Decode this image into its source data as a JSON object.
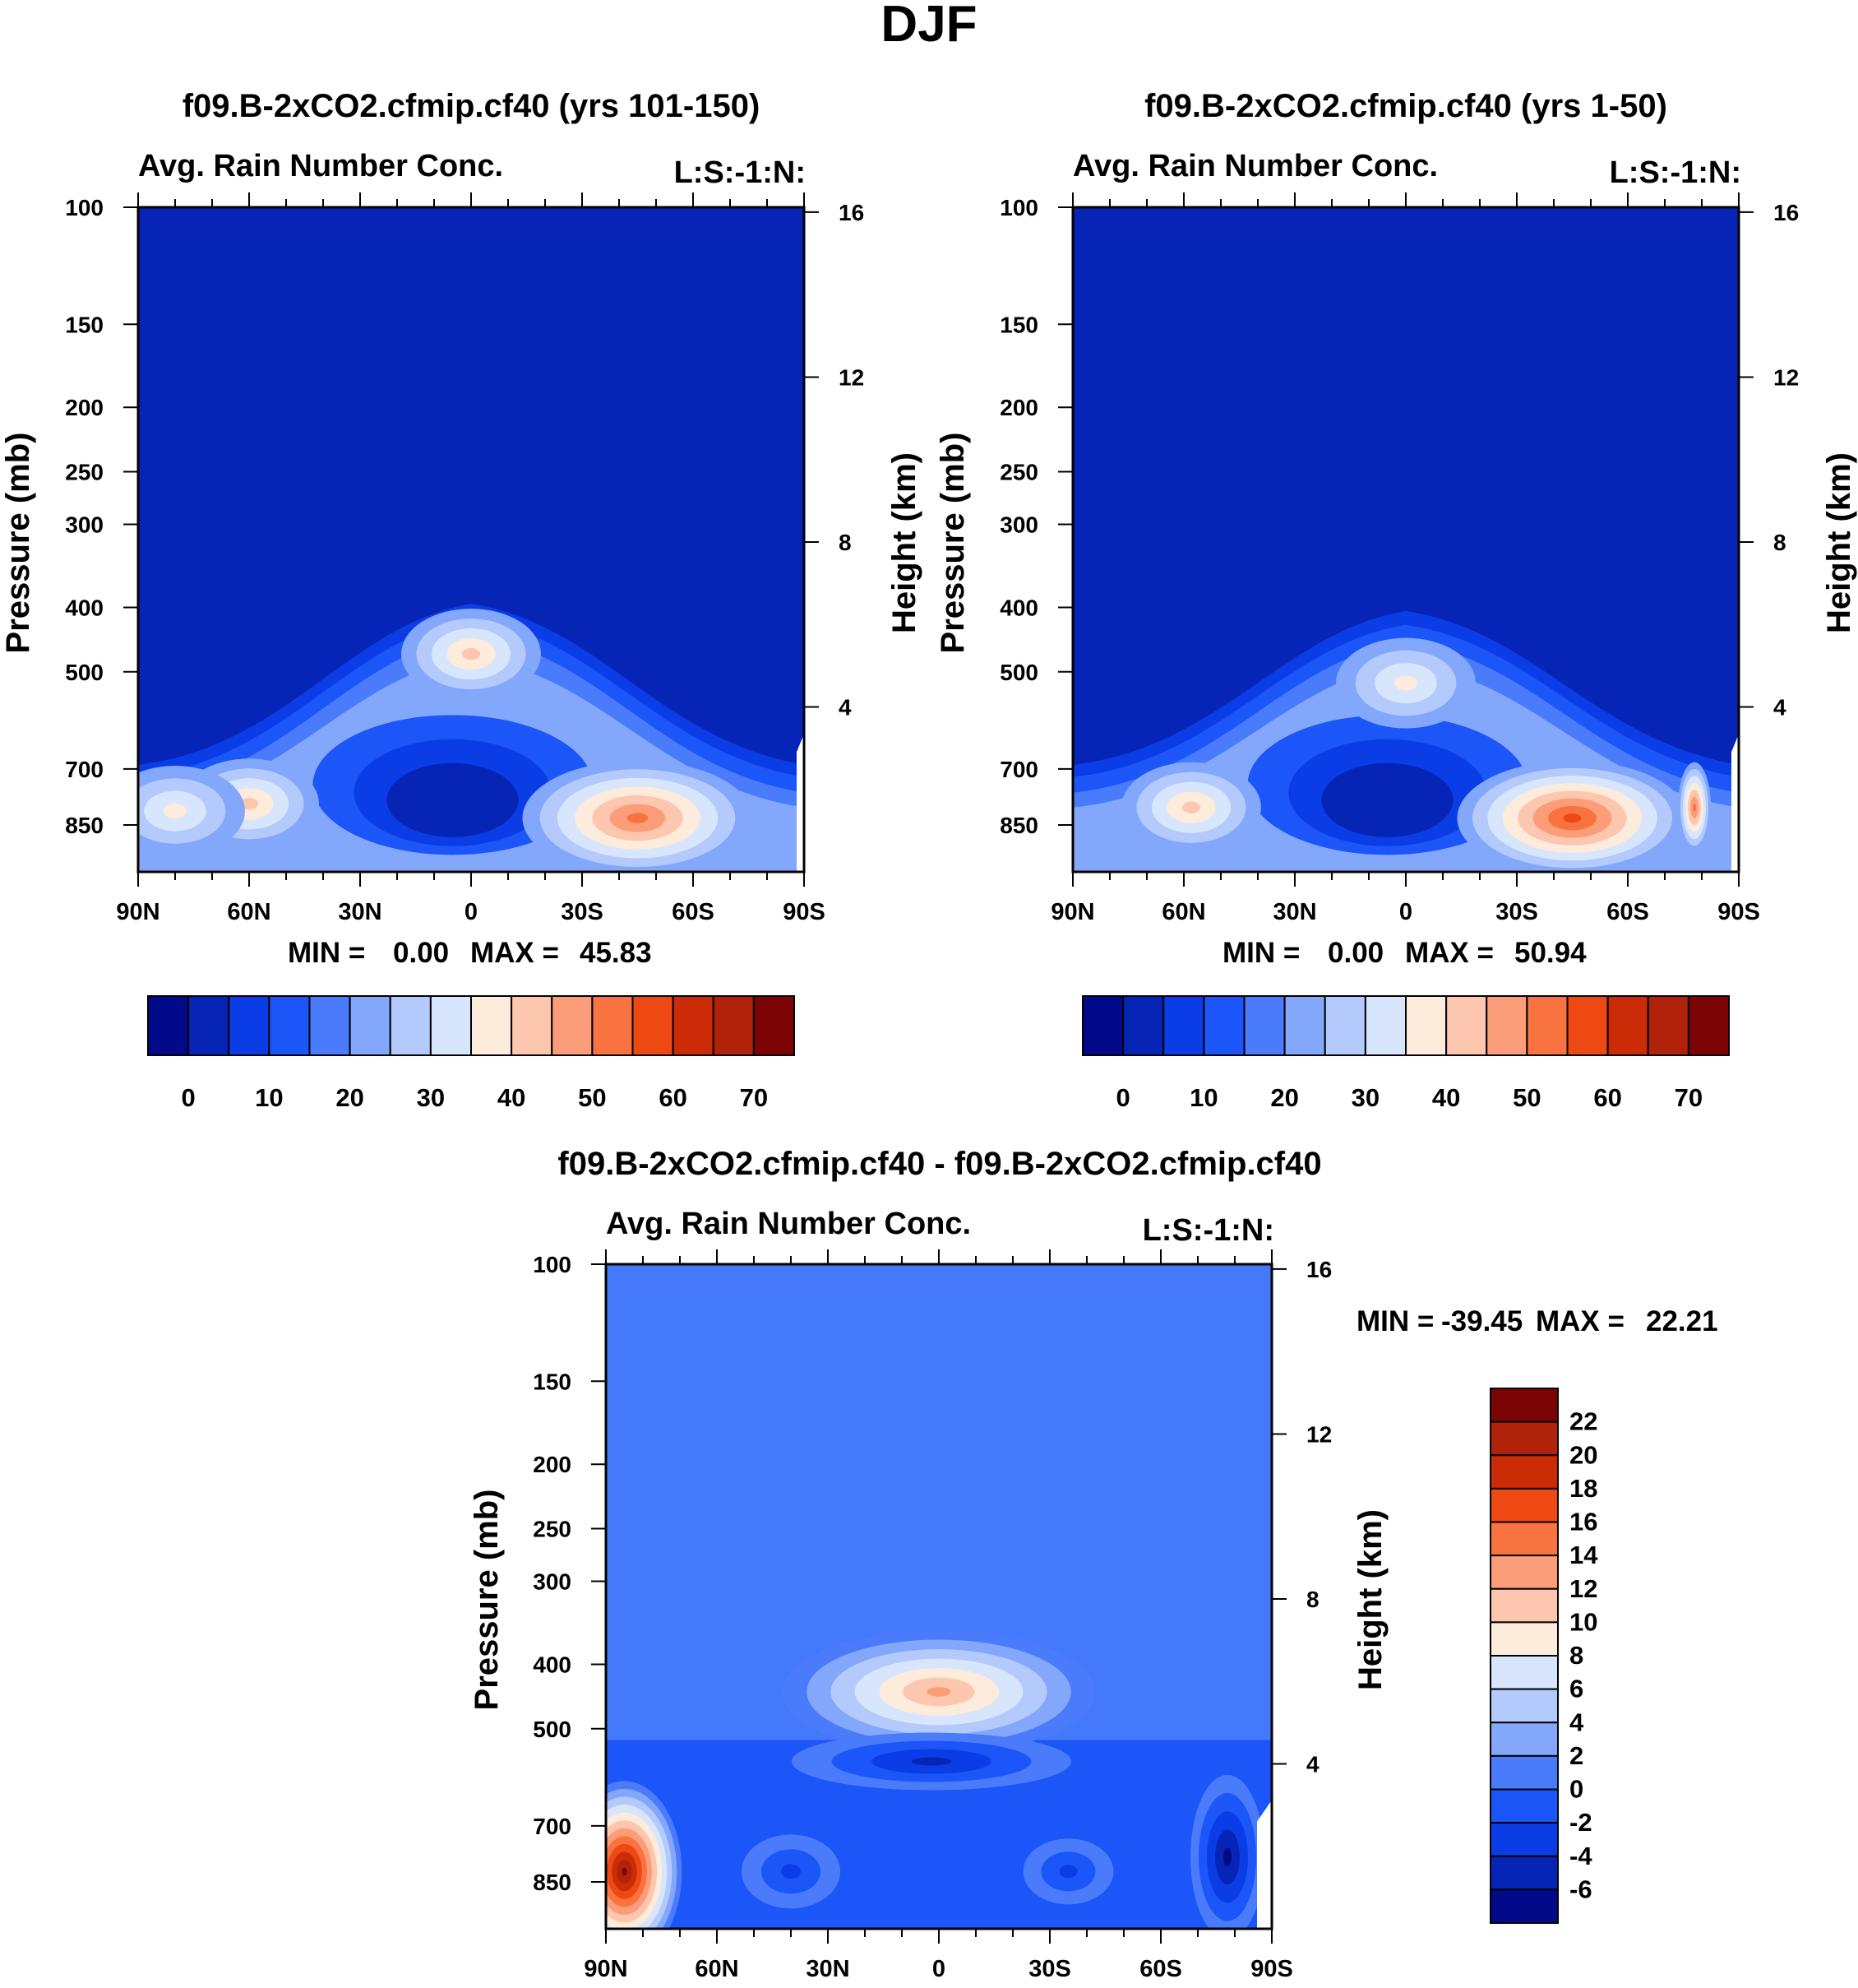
{
  "figure": {
    "title": "DJF"
  },
  "colors": {
    "abs_palette": [
      "#020a8a",
      "#0624b5",
      "#0b3de6",
      "#1c55f8",
      "#4a7bfb",
      "#82a7fb",
      "#b4cafc",
      "#d8e6fd",
      "#fdebdb",
      "#fcc7ae",
      "#fb9d78",
      "#f8733f",
      "#ee4913",
      "#cb2b06",
      "#b0230a",
      "#7c0404"
    ],
    "diff_palette": [
      "#020a8a",
      "#0624b5",
      "#0b3de6",
      "#1c55f8",
      "#4a7bfb",
      "#82a7fb",
      "#b4cafc",
      "#d8e6fd",
      "#fdebdb",
      "#fcc7ae",
      "#fb9d78",
      "#f8733f",
      "#ee4913",
      "#cb2b06",
      "#b0230a",
      "#7c0404"
    ],
    "diff_background": "#4479fb"
  },
  "chart_data": [
    {
      "type": "heatmap",
      "panel": "top-left",
      "title": "f09.B-2xCO2.cfmip.cf40 (yrs 101-150)",
      "subtitle_left": "Avg. Rain Number Conc.",
      "subtitle_right": "L:S:-1:N:",
      "ylabel": "Pressure (mb)",
      "ylabel_right": "Height (km)",
      "x_ticks": [
        "90N",
        "60N",
        "30N",
        "0",
        "30S",
        "60S",
        "90S"
      ],
      "y_ticks": [
        "100",
        "150",
        "200",
        "250",
        "300",
        "400",
        "500",
        "700",
        "850"
      ],
      "y_right_ticks": [
        "16",
        "12",
        "8",
        "4"
      ],
      "ylim": [
        100,
        1000
      ],
      "min_label": "MIN =",
      "min_value": "0.00",
      "max_label": "MAX =",
      "max_value": "45.83",
      "colorbar_levels": [
        -5,
        0,
        5,
        10,
        15,
        20,
        25,
        30,
        35,
        40,
        45,
        50,
        55,
        60,
        65,
        70
      ],
      "colorbar_labels": [
        "0",
        "10",
        "20",
        "30",
        "40",
        "50",
        "60",
        "70"
      ],
      "features": [
        {
          "lat": 0,
          "p": 470,
          "value": 35
        },
        {
          "lat": -45,
          "p": 830,
          "value": 45.83
        },
        {
          "lat": 60,
          "p": 790,
          "value": 36
        },
        {
          "lat": 80,
          "p": 810,
          "value": 30
        },
        {
          "lat": 5,
          "p": 740,
          "value": 3
        }
      ]
    },
    {
      "type": "heatmap",
      "panel": "top-right",
      "title": "f09.B-2xCO2.cfmip.cf40 (yrs 1-50)",
      "subtitle_left": "Avg. Rain Number Conc.",
      "subtitle_right": "L:S:-1:N:",
      "ylabel": "Pressure (mb)",
      "ylabel_right": "Height (km)",
      "x_ticks": [
        "90N",
        "60N",
        "30N",
        "0",
        "30S",
        "60S",
        "90S"
      ],
      "y_ticks": [
        "100",
        "150",
        "200",
        "250",
        "300",
        "400",
        "500",
        "700",
        "850"
      ],
      "y_right_ticks": [
        "16",
        "12",
        "8",
        "4"
      ],
      "ylim": [
        100,
        1000
      ],
      "min_label": "MIN =",
      "min_value": "0.00",
      "max_label": "MAX =",
      "max_value": "50.94",
      "colorbar_levels": [
        -5,
        0,
        5,
        10,
        15,
        20,
        25,
        30,
        35,
        40,
        45,
        50,
        55,
        60,
        65,
        70
      ],
      "colorbar_labels": [
        "0",
        "10",
        "20",
        "30",
        "40",
        "50",
        "60",
        "70"
      ],
      "features": [
        {
          "lat": 0,
          "p": 520,
          "value": 30
        },
        {
          "lat": -45,
          "p": 830,
          "value": 50.94
        },
        {
          "lat": -78,
          "p": 800,
          "value": 45
        },
        {
          "lat": 58,
          "p": 800,
          "value": 35
        },
        {
          "lat": 5,
          "p": 740,
          "value": 3
        }
      ]
    },
    {
      "type": "heatmap",
      "panel": "bottom",
      "title": "f09.B-2xCO2.cfmip.cf40 - f09.B-2xCO2.cfmip.cf40",
      "subtitle_left": "Avg. Rain Number Conc.",
      "subtitle_right": "L:S:-1:N:",
      "ylabel": "Pressure (mb)",
      "ylabel_right": "Height (km)",
      "x_ticks": [
        "90N",
        "60N",
        "30N",
        "0",
        "30S",
        "60S",
        "90S"
      ],
      "y_ticks": [
        "100",
        "150",
        "200",
        "250",
        "300",
        "400",
        "500",
        "700",
        "850"
      ],
      "y_right_ticks": [
        "16",
        "12",
        "8",
        "4"
      ],
      "ylim": [
        100,
        1000
      ],
      "min_label": "MIN =",
      "min_value": "-39.45",
      "max_label": "MAX =",
      "max_value": "22.21",
      "colorbar_levels": [
        -7,
        -6,
        -4,
        -2,
        0,
        2,
        4,
        6,
        8,
        10,
        12,
        14,
        16,
        18,
        20,
        22
      ],
      "colorbar_labels": [
        "22",
        "20",
        "18",
        "16",
        "14",
        "12",
        "10",
        "8",
        "6",
        "4",
        "2",
        "0",
        "-2",
        "-4",
        "-6"
      ],
      "features": [
        {
          "lat": 0,
          "p": 440,
          "value": 12
        },
        {
          "lat": 2,
          "p": 560,
          "value": -6
        },
        {
          "lat": 85,
          "p": 820,
          "value": 22.21
        },
        {
          "lat": -78,
          "p": 780,
          "value": -39.45
        },
        {
          "lat": -35,
          "p": 820,
          "value": -4
        },
        {
          "lat": 40,
          "p": 820,
          "value": -3
        }
      ]
    }
  ]
}
